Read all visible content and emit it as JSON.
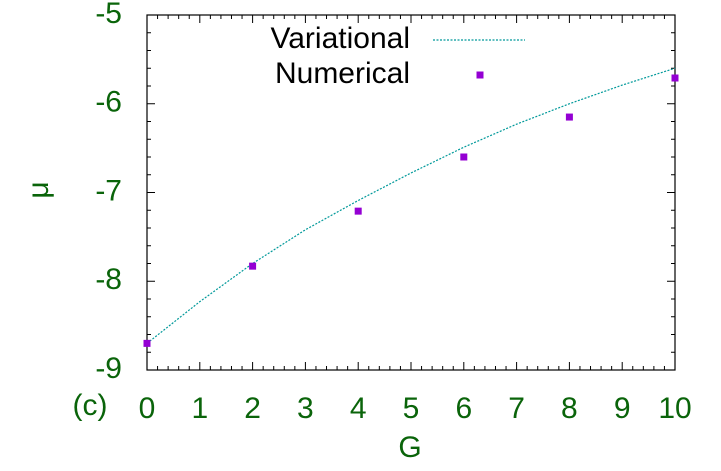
{
  "chart_data": {
    "type": "line",
    "x_label": "G",
    "y_label": "μ",
    "annotation": "(c)",
    "xlim": [
      0,
      10
    ],
    "ylim": [
      -9,
      -5
    ],
    "xticks": [
      0,
      1,
      2,
      3,
      4,
      5,
      6,
      7,
      8,
      9,
      10
    ],
    "yticks": [
      -9,
      -8,
      -7,
      -6,
      -5
    ],
    "legend": "top",
    "series": [
      {
        "name": "Variational",
        "color": "#00999a",
        "style": "dashed",
        "x": [
          0,
          1,
          2,
          3,
          4,
          5,
          6,
          7,
          8,
          9,
          10
        ],
        "values": [
          -8.7,
          -8.23,
          -7.8,
          -7.42,
          -7.09,
          -6.78,
          -6.49,
          -6.23,
          -6.0,
          -5.79,
          -5.6
        ]
      },
      {
        "name": "Numerical",
        "color": "#9400d3",
        "style": "points",
        "x": [
          0,
          2,
          4,
          6,
          8,
          10
        ],
        "values": [
          -8.7,
          -7.83,
          -7.21,
          -6.6,
          -6.15,
          -5.71
        ]
      }
    ]
  }
}
